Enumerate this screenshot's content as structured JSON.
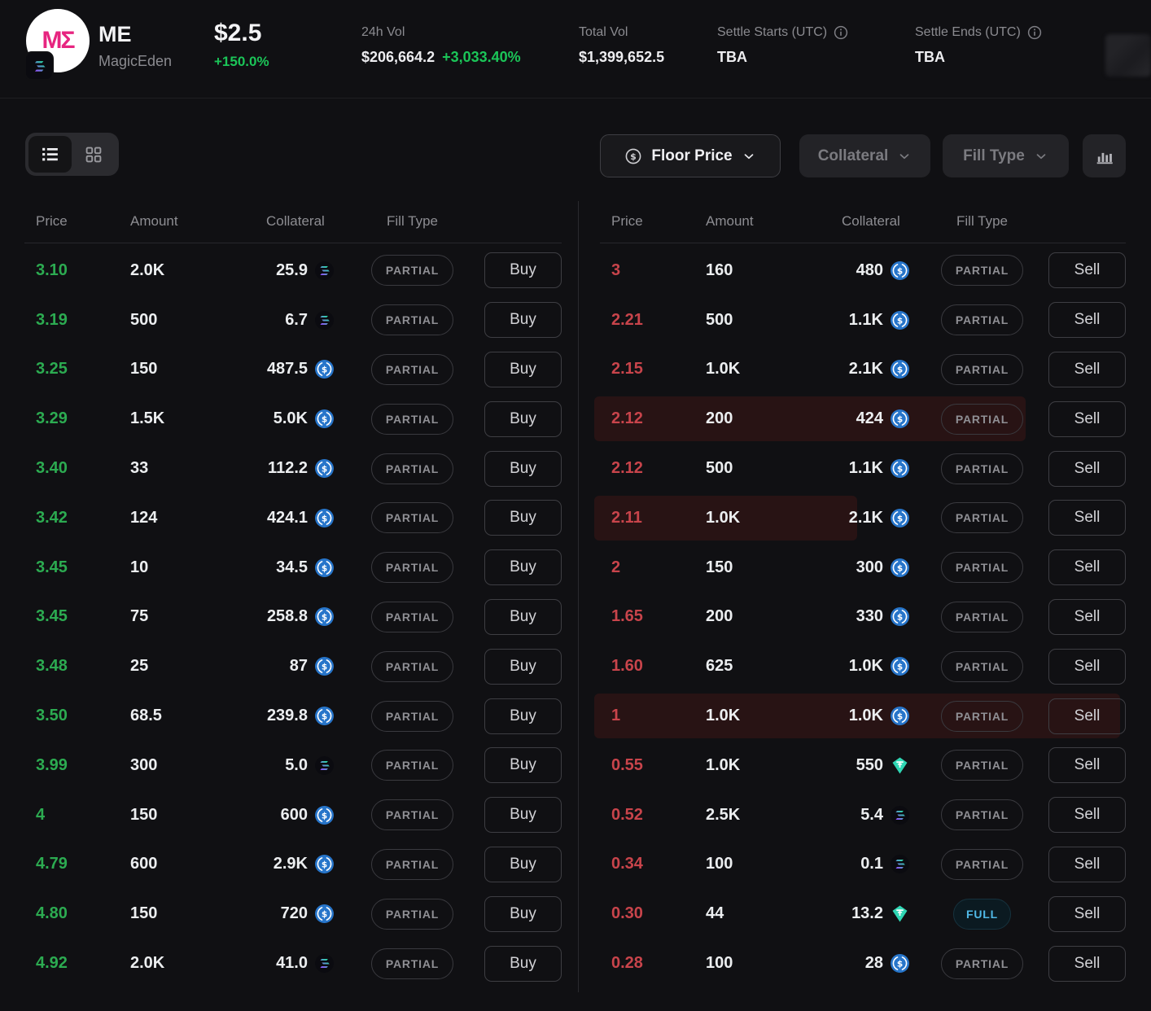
{
  "header": {
    "logo_text": "MΣ",
    "symbol": "ME",
    "name": "MagicEden",
    "price": "$2.5",
    "price_change": "+150.0%",
    "stats": [
      {
        "label": "24h Vol",
        "value": "$206,664.2",
        "change": "+3,033.40%"
      },
      {
        "label": "Total Vol",
        "value": "$1,399,652.5"
      },
      {
        "label": "Settle Starts (UTC)",
        "value": "TBA",
        "has_info": true
      },
      {
        "label": "Settle Ends (UTC)",
        "value": "TBA",
        "has_info": true
      }
    ]
  },
  "toolbar": {
    "view_modes": [
      "list",
      "grid"
    ],
    "active_view": "list",
    "filters": [
      {
        "label": "Floor Price",
        "icon": "dollar-circle-icon",
        "active": true
      },
      {
        "label": "Collateral",
        "active": false
      },
      {
        "label": "Fill Type",
        "active": false
      }
    ],
    "chart_button_icon": "depth-chart-icon"
  },
  "table": {
    "columns": [
      "Price",
      "Amount",
      "Collateral",
      "Fill Type"
    ],
    "buy": {
      "action_label": "Buy",
      "rows": [
        {
          "price": "3.10",
          "amount": "2.0K",
          "collateral": "25.9",
          "coin": "sol",
          "fill": "PARTIAL"
        },
        {
          "price": "3.19",
          "amount": "500",
          "collateral": "6.7",
          "coin": "sol",
          "fill": "PARTIAL"
        },
        {
          "price": "3.25",
          "amount": "150",
          "collateral": "487.5",
          "coin": "usdc",
          "fill": "PARTIAL"
        },
        {
          "price": "3.29",
          "amount": "1.5K",
          "collateral": "5.0K",
          "coin": "usdc",
          "fill": "PARTIAL"
        },
        {
          "price": "3.40",
          "amount": "33",
          "collateral": "112.2",
          "coin": "usdc",
          "fill": "PARTIAL"
        },
        {
          "price": "3.42",
          "amount": "124",
          "collateral": "424.1",
          "coin": "usdc",
          "fill": "PARTIAL"
        },
        {
          "price": "3.45",
          "amount": "10",
          "collateral": "34.5",
          "coin": "usdc",
          "fill": "PARTIAL"
        },
        {
          "price": "3.45",
          "amount": "75",
          "collateral": "258.8",
          "coin": "usdc",
          "fill": "PARTIAL"
        },
        {
          "price": "3.48",
          "amount": "25",
          "collateral": "87",
          "coin": "usdc",
          "fill": "PARTIAL"
        },
        {
          "price": "3.50",
          "amount": "68.5",
          "collateral": "239.8",
          "coin": "usdc",
          "fill": "PARTIAL"
        },
        {
          "price": "3.99",
          "amount": "300",
          "collateral": "5.0",
          "coin": "sol",
          "fill": "PARTIAL"
        },
        {
          "price": "4",
          "amount": "150",
          "collateral": "600",
          "coin": "usdc",
          "fill": "PARTIAL"
        },
        {
          "price": "4.79",
          "amount": "600",
          "collateral": "2.9K",
          "coin": "usdc",
          "fill": "PARTIAL"
        },
        {
          "price": "4.80",
          "amount": "150",
          "collateral": "720",
          "coin": "usdc",
          "fill": "PARTIAL"
        },
        {
          "price": "4.92",
          "amount": "2.0K",
          "collateral": "41.0",
          "coin": "sol",
          "fill": "PARTIAL"
        }
      ]
    },
    "sell": {
      "action_label": "Sell",
      "rows": [
        {
          "price": "3",
          "amount": "160",
          "collateral": "480",
          "coin": "usdc",
          "fill": "PARTIAL"
        },
        {
          "price": "2.21",
          "amount": "500",
          "collateral": "1.1K",
          "coin": "usdc",
          "fill": "PARTIAL"
        },
        {
          "price": "2.15",
          "amount": "1.0K",
          "collateral": "2.1K",
          "coin": "usdc",
          "fill": "PARTIAL"
        },
        {
          "price": "2.12",
          "amount": "200",
          "collateral": "424",
          "coin": "usdc",
          "fill": "PARTIAL",
          "highlight_pct": 82
        },
        {
          "price": "2.12",
          "amount": "500",
          "collateral": "1.1K",
          "coin": "usdc",
          "fill": "PARTIAL"
        },
        {
          "price": "2.11",
          "amount": "1.0K",
          "collateral": "2.1K",
          "coin": "usdc",
          "fill": "PARTIAL",
          "highlight_pct": 50
        },
        {
          "price": "2",
          "amount": "150",
          "collateral": "300",
          "coin": "usdc",
          "fill": "PARTIAL"
        },
        {
          "price": "1.65",
          "amount": "200",
          "collateral": "330",
          "coin": "usdc",
          "fill": "PARTIAL"
        },
        {
          "price": "1.60",
          "amount": "625",
          "collateral": "1.0K",
          "coin": "usdc",
          "fill": "PARTIAL"
        },
        {
          "price": "1",
          "amount": "1.0K",
          "collateral": "1.0K",
          "coin": "usdc",
          "fill": "PARTIAL",
          "highlight_pct": 100
        },
        {
          "price": "0.55",
          "amount": "1.0K",
          "collateral": "550",
          "coin": "usdt",
          "fill": "PARTIAL"
        },
        {
          "price": "0.52",
          "amount": "2.5K",
          "collateral": "5.4",
          "coin": "sol",
          "fill": "PARTIAL"
        },
        {
          "price": "0.34",
          "amount": "100",
          "collateral": "0.1",
          "coin": "sol",
          "fill": "PARTIAL"
        },
        {
          "price": "0.30",
          "amount": "44",
          "collateral": "13.2",
          "coin": "usdt",
          "fill": "FULL"
        },
        {
          "price": "0.28",
          "amount": "100",
          "collateral": "28",
          "coin": "usdc",
          "fill": "PARTIAL"
        }
      ]
    }
  },
  "colors": {
    "buy_price": "#2cab51",
    "sell_price": "#c8444b",
    "header_green": "#1bc558",
    "usdc": "#2775CA",
    "usdt": "#2fd6b4",
    "full_badge": "#4fb8e6",
    "row_highlight": "#281314"
  }
}
